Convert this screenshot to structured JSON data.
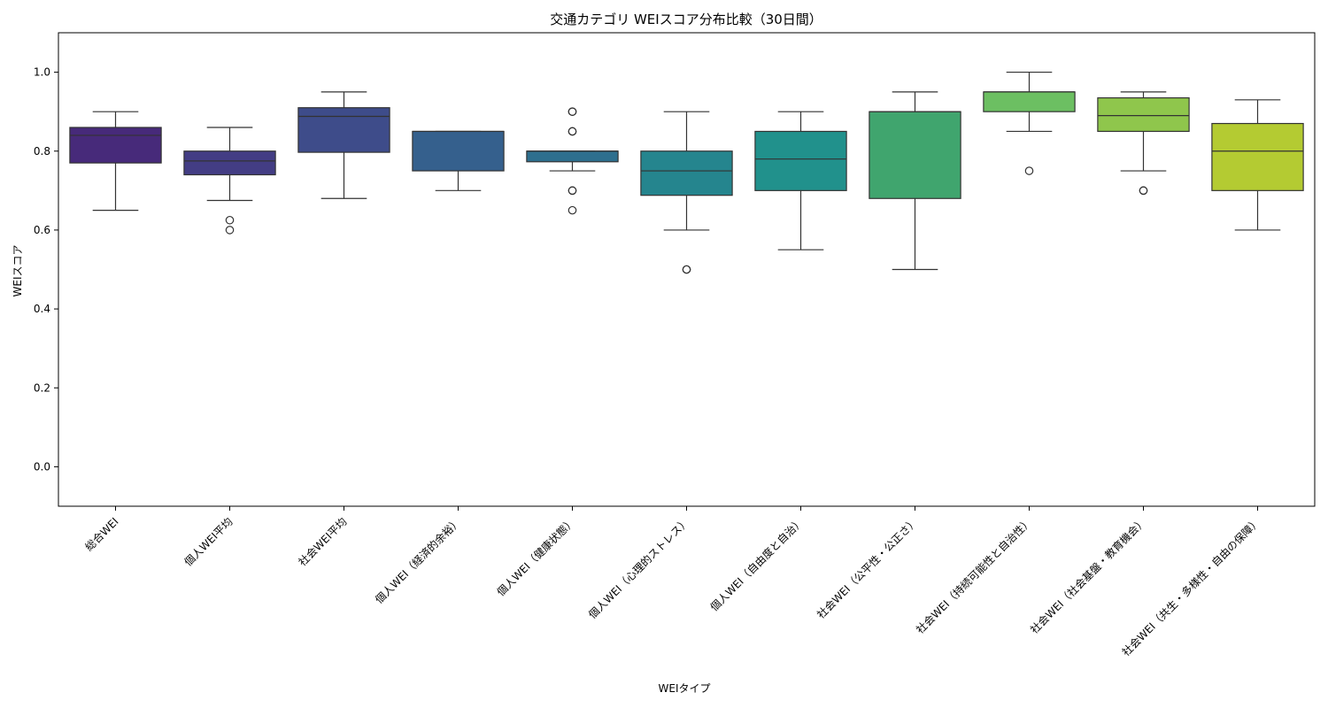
{
  "chart_data": {
    "type": "box",
    "title": "交通カテゴリ WEIスコア分布比較（30日間）",
    "xlabel": "WEIタイプ",
    "ylabel": "WEIスコア",
    "ylim": [
      -0.1,
      1.1
    ],
    "yticks": [
      "0.0",
      "0.2",
      "0.4",
      "0.6",
      "0.8",
      "1.0"
    ],
    "grid": false,
    "categories": [
      "総合WEI",
      "個人WEI平均",
      "社会WEI平均",
      "個人WEI（経済的余裕）",
      "個人WEI（健康状態）",
      "個人WEI（心理的ストレス）",
      "個人WEI（自由度と自治）",
      "社会WEI（公平性・公正さ）",
      "社会WEI（持続可能性と自治性）",
      "社会WEI（社会基盤・教育機会）",
      "社会WEI（共生・多様性・自由の保障）"
    ],
    "boxes": [
      {
        "whisker_low": 0.65,
        "q1": 0.77,
        "median": 0.84,
        "q3": 0.86,
        "whisker_high": 0.9,
        "outliers": [],
        "color": "#472a7a"
      },
      {
        "whisker_low": 0.675,
        "q1": 0.74,
        "median": 0.775,
        "q3": 0.8,
        "whisker_high": 0.86,
        "outliers": [
          0.625,
          0.6
        ],
        "color": "#433d84"
      },
      {
        "whisker_low": 0.68,
        "q1": 0.797,
        "median": 0.888,
        "q3": 0.91,
        "whisker_high": 0.95,
        "outliers": [],
        "color": "#3e4c8a"
      },
      {
        "whisker_low": 0.7,
        "q1": 0.75,
        "median": 0.85,
        "q3": 0.85,
        "whisker_high": 0.85,
        "outliers": [],
        "color": "#35608d"
      },
      {
        "whisker_low": 0.75,
        "q1": 0.773,
        "median": 0.8,
        "q3": 0.8,
        "whisker_high": 0.8,
        "outliers": [
          0.9,
          0.9,
          0.85,
          0.85,
          0.7,
          0.7,
          0.65
        ],
        "color": "#2e6f8e"
      },
      {
        "whisker_low": 0.6,
        "q1": 0.688,
        "median": 0.75,
        "q3": 0.8,
        "whisker_high": 0.9,
        "outliers": [
          0.5,
          0.5
        ],
        "color": "#25858e"
      },
      {
        "whisker_low": 0.55,
        "q1": 0.7,
        "median": 0.78,
        "q3": 0.85,
        "whisker_high": 0.9,
        "outliers": [],
        "color": "#21918c"
      },
      {
        "whisker_low": 0.5,
        "q1": 0.68,
        "median": 0.9,
        "q3": 0.9,
        "whisker_high": 0.95,
        "outliers": [],
        "color": "#40a56e"
      },
      {
        "whisker_low": 0.85,
        "q1": 0.9,
        "median": 0.95,
        "q3": 0.95,
        "whisker_high": 1.0,
        "outliers": [
          0.75
        ],
        "color": "#6cbf62"
      },
      {
        "whisker_low": 0.75,
        "q1": 0.85,
        "median": 0.89,
        "q3": 0.935,
        "whisker_high": 0.95,
        "outliers": [
          0.7,
          0.7
        ],
        "color": "#8fc64c"
      },
      {
        "whisker_low": 0.6,
        "q1": 0.7,
        "median": 0.8,
        "q3": 0.87,
        "whisker_high": 0.93,
        "outliers": [],
        "color": "#b4cb32"
      }
    ]
  }
}
